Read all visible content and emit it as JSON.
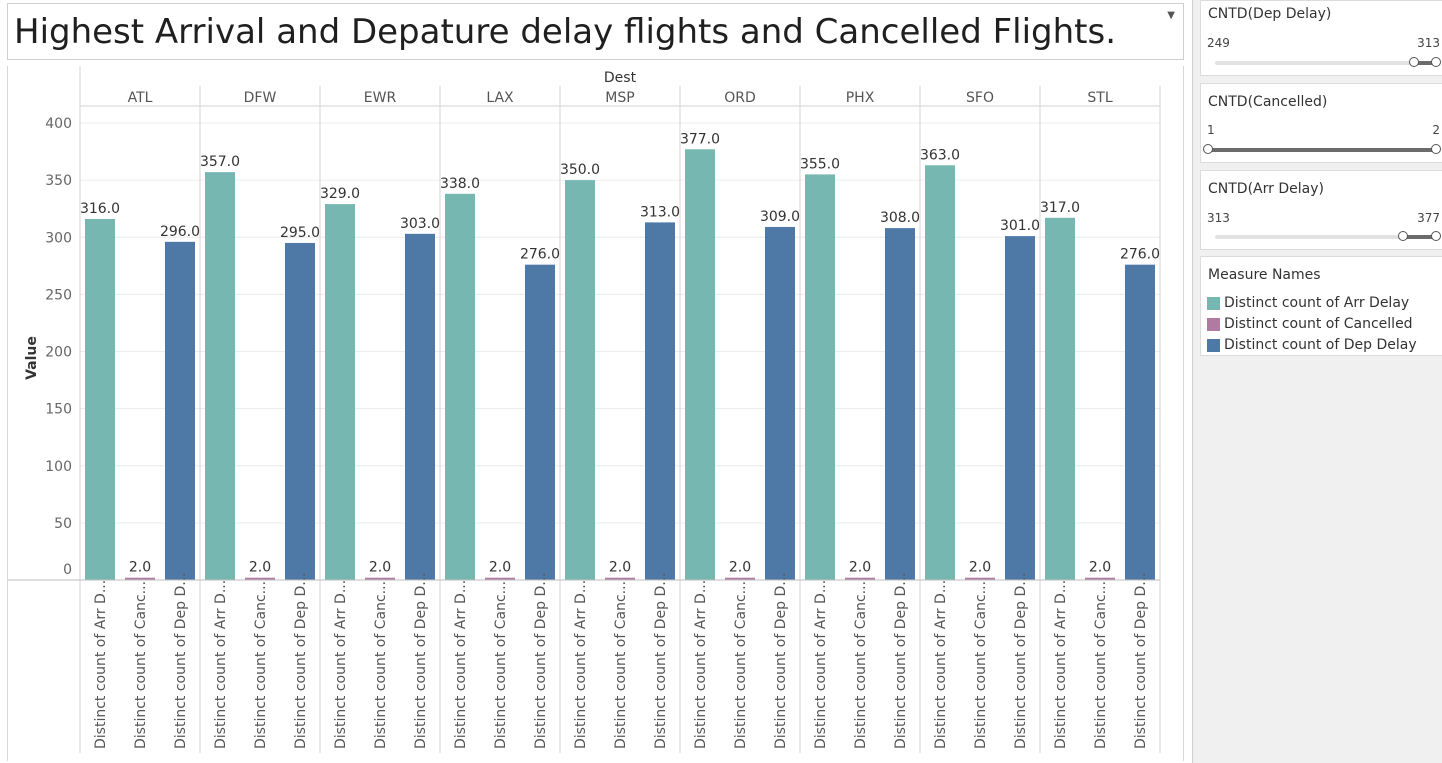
{
  "title": "Highest Arrival and Depature delay flights and Cancelled Flights.",
  "colors": {
    "arr": "#76b7b2",
    "cancelled": "#b07aa1",
    "dep": "#4e79a7"
  },
  "filters": [
    {
      "title": "CNTD(Dep Delay)",
      "min_label": "249",
      "max_label": "313",
      "sel_low": 0.9,
      "sel_high": 1.0
    },
    {
      "title": "CNTD(Cancelled)",
      "min_label": "1",
      "max_label": "2",
      "sel_low": 0.0,
      "sel_high": 1.0
    },
    {
      "title": "CNTD(Arr Delay)",
      "min_label": "313",
      "max_label": "377",
      "sel_low": 0.85,
      "sel_high": 1.0
    }
  ],
  "legend": {
    "title": "Measure Names",
    "items": [
      {
        "label": "Distinct count of Arr Delay",
        "color": "#76b7b2"
      },
      {
        "label": "Distinct count of Cancelled",
        "color": "#b07aa1"
      },
      {
        "label": "Distinct count of Dep Delay",
        "color": "#4e79a7"
      }
    ]
  },
  "chart_data": {
    "type": "bar",
    "title": "Highest Arrival and Depature delay flights and Cancelled Flights.",
    "column_header": "Dest",
    "ylabel": "Value",
    "ylim": [
      0,
      400
    ],
    "yticks": [
      0,
      50,
      100,
      150,
      200,
      250,
      300,
      350,
      400
    ],
    "grid": true,
    "categories": [
      "ATL",
      "DFW",
      "EWR",
      "LAX",
      "MSP",
      "ORD",
      "PHX",
      "SFO",
      "STL"
    ],
    "measure_labels": [
      "Distinct count of Arr D...",
      "Distinct count of Canc...",
      "Distinct count of Dep D..."
    ],
    "series": [
      {
        "name": "Distinct count of Arr Delay",
        "values": [
          316,
          357,
          329,
          338,
          350,
          377,
          355,
          363,
          317
        ]
      },
      {
        "name": "Distinct count of Cancelled",
        "values": [
          2,
          2,
          2,
          2,
          2,
          2,
          2,
          2,
          2
        ]
      },
      {
        "name": "Distinct count of Dep Delay",
        "values": [
          296,
          295,
          303,
          276,
          313,
          309,
          308,
          301,
          276
        ]
      }
    ],
    "data_labels": [
      [
        "316.0",
        "2.0",
        "296.0"
      ],
      [
        "357.0",
        "2.0",
        "295.0"
      ],
      [
        "329.0",
        "2.0",
        "303.0"
      ],
      [
        "338.0",
        "2.0",
        "276.0"
      ],
      [
        "350.0",
        "2.0",
        "313.0"
      ],
      [
        "377.0",
        "2.0",
        "309.0"
      ],
      [
        "355.0",
        "2.0",
        "308.0"
      ],
      [
        "363.0",
        "2.0",
        "301.0"
      ],
      [
        "317.0",
        "2.0",
        "276.0"
      ]
    ]
  }
}
